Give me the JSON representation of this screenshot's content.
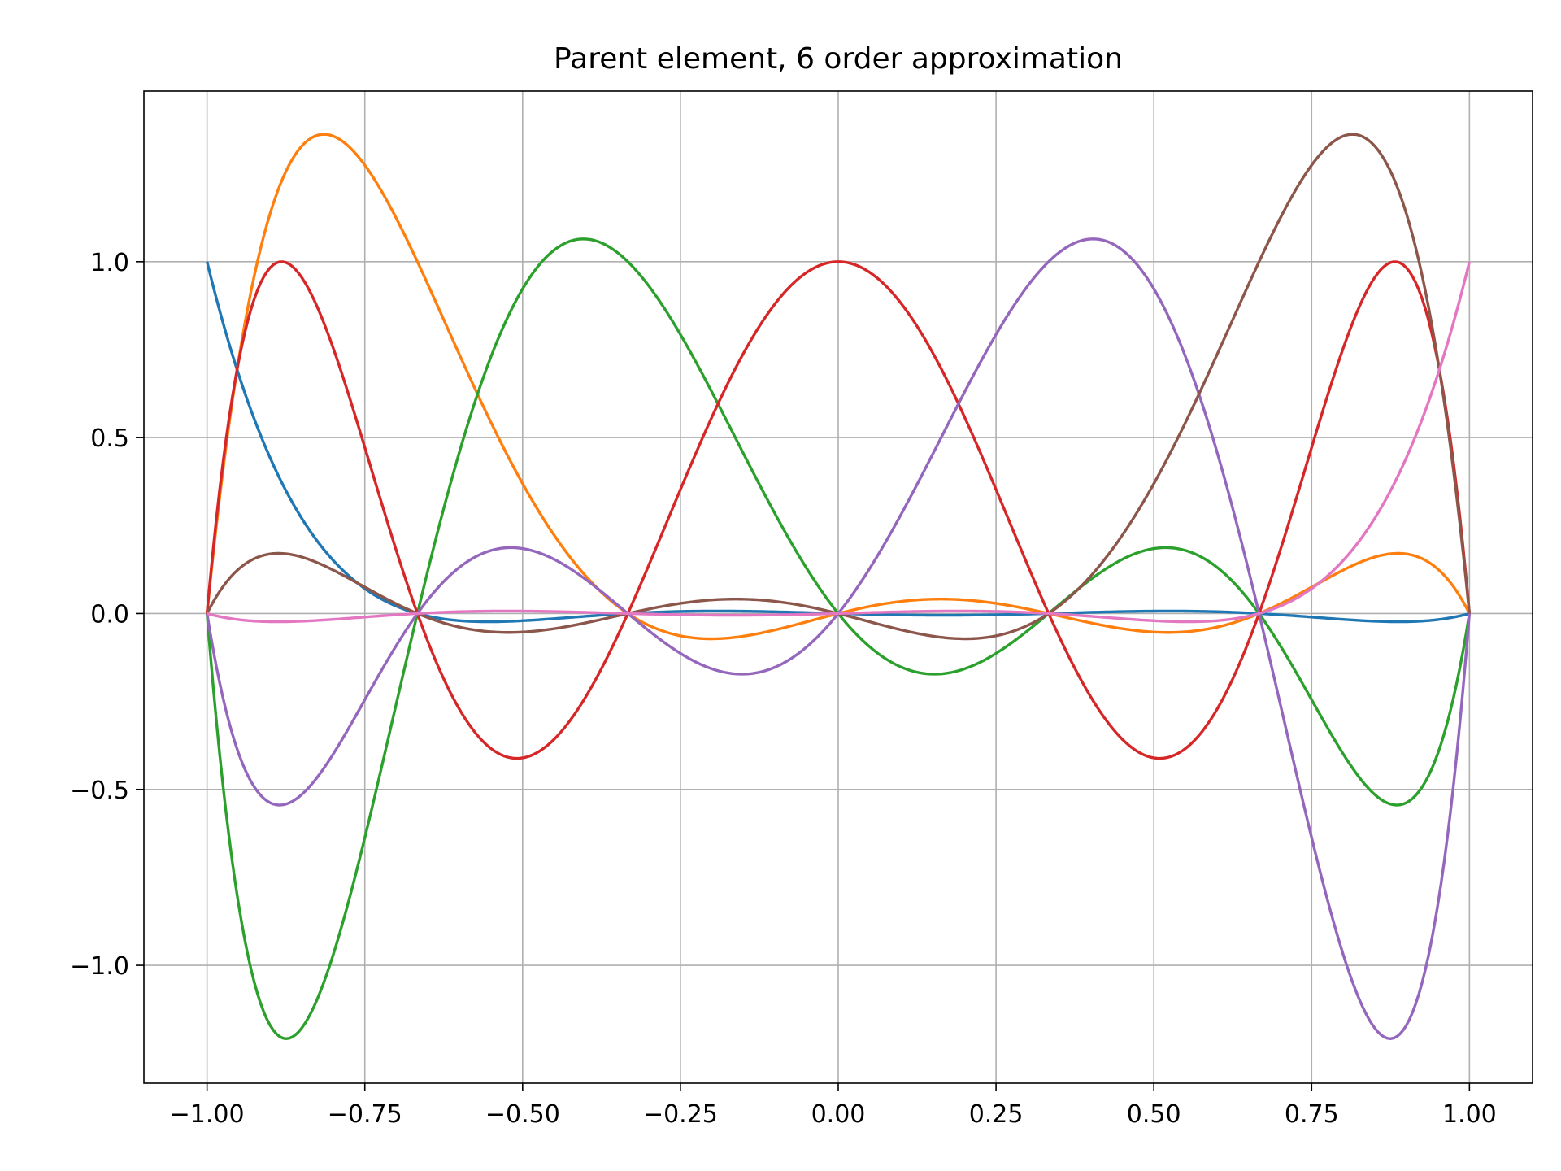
{
  "chart_data": {
    "type": "line",
    "title": "Parent element, 6 order approximation",
    "xlabel": "",
    "ylabel": "",
    "xlim": [
      -1.1,
      1.1
    ],
    "ylim": [
      -1.335,
      1.485
    ],
    "grid": true,
    "legend": "none",
    "x_ticks": [
      -1.0,
      -0.75,
      -0.5,
      -0.25,
      0.0,
      0.25,
      0.5,
      0.75,
      1.0
    ],
    "x_tick_labels": [
      "−1.00",
      "−0.75",
      "−0.50",
      "−0.25",
      "0.00",
      "0.25",
      "0.50",
      "0.75",
      "1.00"
    ],
    "y_ticks": [
      -1.0,
      -0.5,
      0.0,
      0.5,
      1.0
    ],
    "y_tick_labels": [
      "−1.0",
      "−0.5",
      "0.0",
      "0.5",
      "1.0"
    ],
    "nodes": [
      -1.0,
      -0.6667,
      -0.3333,
      0.0,
      0.3333,
      0.6667,
      1.0
    ],
    "series": [
      {
        "node_index": 0,
        "color": "#1f77b4"
      },
      {
        "node_index": 1,
        "color": "#ff7f0e"
      },
      {
        "node_index": 2,
        "color": "#2ca02c"
      },
      {
        "node_index": 3,
        "color": "#d62728"
      },
      {
        "node_index": 4,
        "color": "#9467bd"
      },
      {
        "node_index": 5,
        "color": "#8c564b"
      },
      {
        "node_index": 6,
        "color": "#e377c2"
      }
    ]
  }
}
